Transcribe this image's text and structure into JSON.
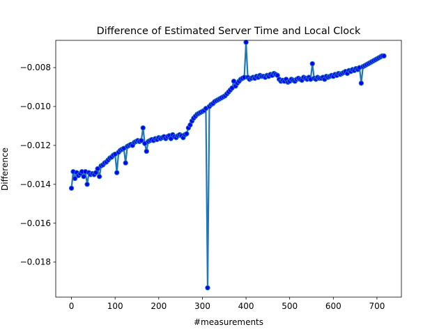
{
  "chart_data": {
    "type": "line",
    "title": "Difference of Estimated Server Time and Local Clock",
    "xlabel": "#measurements",
    "ylabel": "Difference",
    "xlim": [
      -36,
      756
    ],
    "ylim": [
      -0.0198,
      -0.0066
    ],
    "xticks": [
      0,
      100,
      200,
      300,
      400,
      500,
      600,
      700
    ],
    "yticks": [
      -0.018,
      -0.016,
      -0.014,
      -0.012,
      -0.01,
      -0.008
    ],
    "xtick_labels": [
      "0",
      "100",
      "200",
      "300",
      "400",
      "500",
      "600",
      "700"
    ],
    "ytick_labels": [
      "−0.018",
      "−0.016",
      "−0.014",
      "−0.012",
      "−0.010",
      "−0.008"
    ],
    "grid": false,
    "line_color": "#1f77b4",
    "marker_color": "#0000ff",
    "points_step": 4,
    "series": [
      {
        "values": [
          -0.0142,
          -0.01335,
          -0.0137,
          -0.0134,
          -0.01355,
          -0.01345,
          -0.01335,
          -0.0136,
          -0.01335,
          -0.014,
          -0.0134,
          -0.0135,
          -0.01345,
          -0.0135,
          -0.0134,
          -0.0132,
          -0.0136,
          -0.01305,
          -0.013,
          -0.0129,
          -0.01285,
          -0.01275,
          -0.01265,
          -0.0126,
          -0.0125,
          -0.01245,
          -0.0134,
          -0.01235,
          -0.01225,
          -0.0122,
          -0.01215,
          -0.0129,
          -0.01205,
          -0.012,
          -0.01195,
          -0.012,
          -0.01185,
          -0.0118,
          -0.01175,
          -0.0118,
          -0.01175,
          -0.0111,
          -0.0119,
          -0.0123,
          -0.0118,
          -0.01175,
          -0.0117,
          -0.01175,
          -0.01165,
          -0.0117,
          -0.0116,
          -0.01165,
          -0.0116,
          -0.01155,
          -0.01165,
          -0.01155,
          -0.0115,
          -0.01165,
          -0.01145,
          -0.01155,
          -0.0116,
          -0.0115,
          -0.01145,
          -0.0115,
          -0.0116,
          -0.01145,
          -0.0114,
          -0.0111,
          -0.01095,
          -0.01075,
          -0.0106,
          -0.0105,
          -0.0104,
          -0.01035,
          -0.0103,
          -0.01025,
          -0.0102,
          -0.0101,
          -0.01932,
          -0.01,
          -0.0099,
          -0.00985,
          -0.00975,
          -0.0097,
          -0.00965,
          -0.0096,
          -0.00955,
          -0.0095,
          -0.00945,
          -0.00935,
          -0.00925,
          -0.00915,
          -0.00905,
          -0.0087,
          -0.00895,
          -0.0088,
          -0.0087,
          -0.0086,
          -0.00855,
          -0.0085,
          -0.0067,
          -0.0085,
          -0.0086,
          -0.00855,
          -0.0085,
          -0.00855,
          -0.00845,
          -0.0085,
          -0.0084,
          -0.00845,
          -0.00845,
          -0.0085,
          -0.0084,
          -0.00845,
          -0.00835,
          -0.0084,
          -0.0083,
          -0.00835,
          -0.0084,
          -0.0086,
          -0.0087,
          -0.00865,
          -0.0087,
          -0.0086,
          -0.00875,
          -0.0087,
          -0.0086,
          -0.00865,
          -0.0087,
          -0.0086,
          -0.00855,
          -0.0086,
          -0.00865,
          -0.0085,
          -0.00855,
          -0.0086,
          -0.0085,
          -0.0086,
          -0.0078,
          -0.00855,
          -0.0086,
          -0.0085,
          -0.00855,
          -0.00855,
          -0.0085,
          -0.0086,
          -0.00845,
          -0.0085,
          -0.00845,
          -0.0084,
          -0.00845,
          -0.00835,
          -0.0084,
          -0.0083,
          -0.00835,
          -0.0083,
          -0.00825,
          -0.0082,
          -0.0083,
          -0.00815,
          -0.0082,
          -0.0081,
          -0.00815,
          -0.00805,
          -0.0081,
          -0.008,
          -0.0088,
          -0.00795,
          -0.0079,
          -0.00785,
          -0.0078,
          -0.00775,
          -0.0077,
          -0.00765,
          -0.0076,
          -0.00755,
          -0.0075,
          -0.00745,
          -0.0074,
          -0.0074
        ]
      }
    ]
  }
}
